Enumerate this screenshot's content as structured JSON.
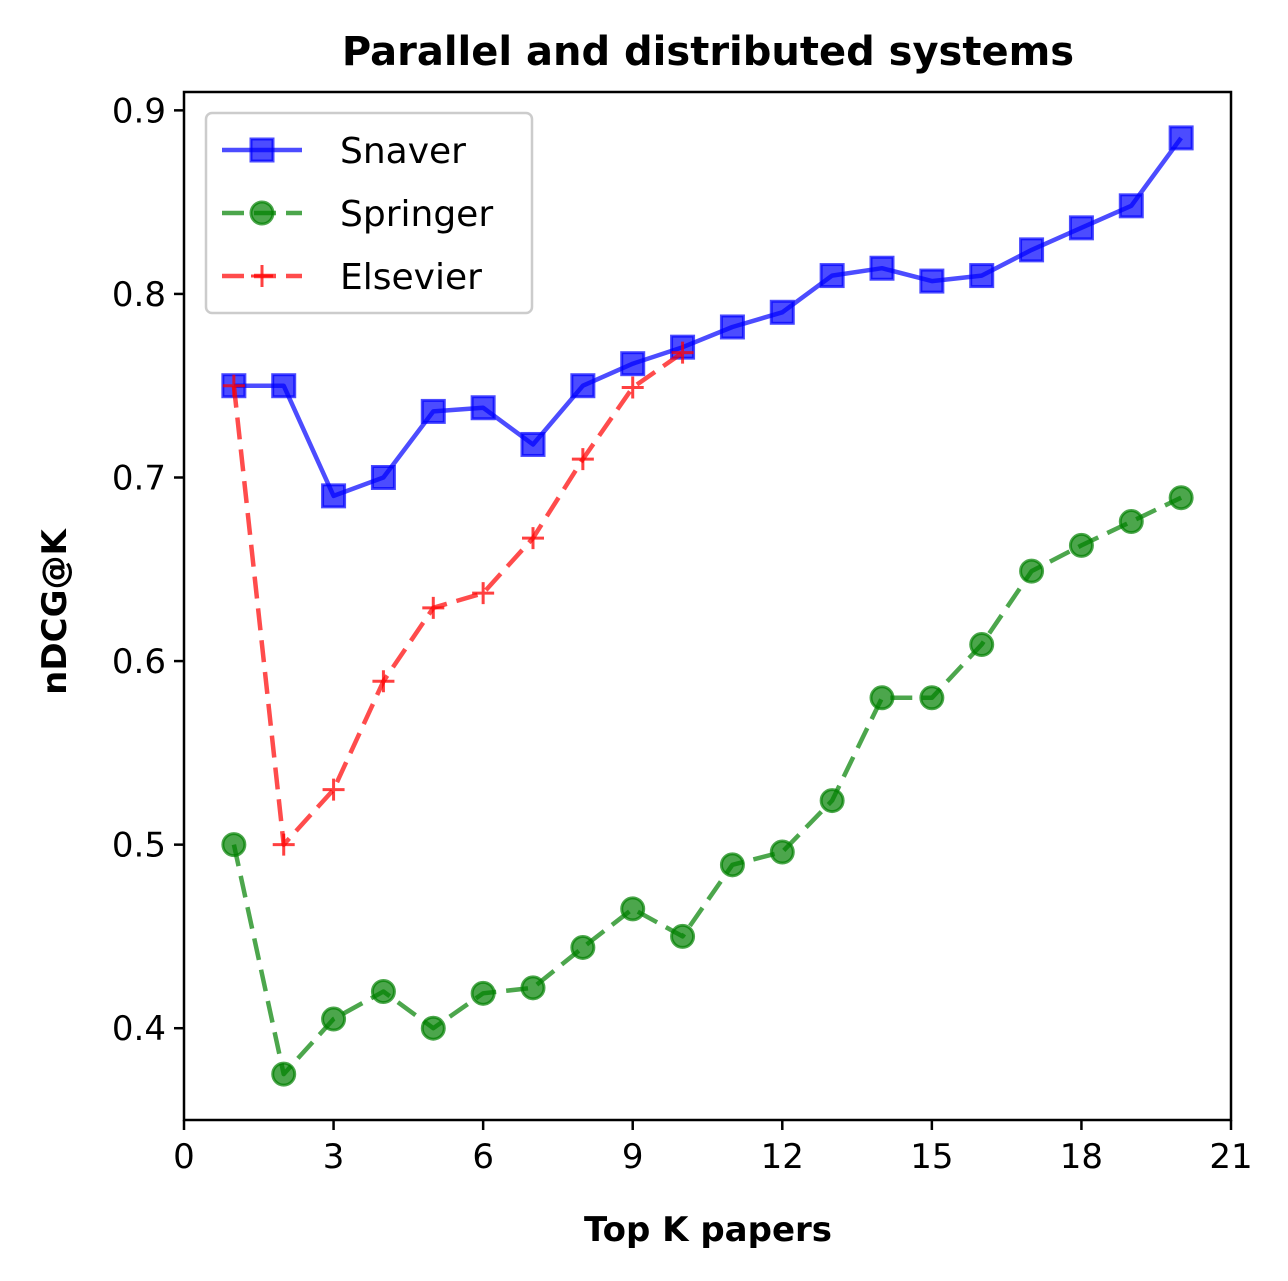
{
  "chart_data": {
    "type": "line",
    "title": "Parallel and distributed systems",
    "xlabel": "Top K papers",
    "ylabel": "nDCG@K",
    "xlim": [
      0,
      21
    ],
    "ylim": [
      0.35,
      0.91
    ],
    "xticks": [
      0,
      3,
      6,
      9,
      12,
      15,
      18,
      21
    ],
    "yticks": [
      0.4,
      0.5,
      0.6,
      0.7,
      0.8,
      0.9
    ],
    "xtick_labels": [
      "0",
      "3",
      "6",
      "9",
      "12",
      "15",
      "18",
      "21"
    ],
    "ytick_labels": [
      "0.4",
      "0.5",
      "0.6",
      "0.7",
      "0.8",
      "0.9"
    ],
    "grid": false,
    "legend_position": "upper-left",
    "series": [
      {
        "name": "Snaver",
        "color": "#0000ff",
        "marker": "square",
        "linestyle": "solid",
        "x": [
          1,
          2,
          3,
          4,
          5,
          6,
          7,
          8,
          9,
          10,
          11,
          12,
          13,
          14,
          15,
          16,
          17,
          18,
          19,
          20
        ],
        "y": [
          0.75,
          0.75,
          0.69,
          0.7,
          0.736,
          0.738,
          0.718,
          0.75,
          0.762,
          0.771,
          0.782,
          0.79,
          0.81,
          0.814,
          0.807,
          0.81,
          0.824,
          0.836,
          0.848,
          0.885
        ]
      },
      {
        "name": "Springer",
        "color": "#008000",
        "marker": "circle",
        "linestyle": "dashed",
        "x": [
          1,
          2,
          3,
          4,
          5,
          6,
          7,
          8,
          9,
          10,
          11,
          12,
          13,
          14,
          15,
          16,
          17,
          18,
          19,
          20
        ],
        "y": [
          0.5,
          0.375,
          0.405,
          0.42,
          0.4,
          0.419,
          0.422,
          0.444,
          0.465,
          0.45,
          0.489,
          0.496,
          0.524,
          0.58,
          0.58,
          0.609,
          0.649,
          0.663,
          0.676,
          0.689
        ]
      },
      {
        "name": "Elsevier",
        "color": "#ff0000",
        "marker": "plus",
        "linestyle": "dashed",
        "x": [
          1,
          2,
          3,
          4,
          5,
          6,
          7,
          8,
          9,
          10
        ],
        "y": [
          0.75,
          0.5,
          0.53,
          0.589,
          0.629,
          0.637,
          0.667,
          0.71,
          0.749,
          0.768
        ]
      }
    ]
  }
}
